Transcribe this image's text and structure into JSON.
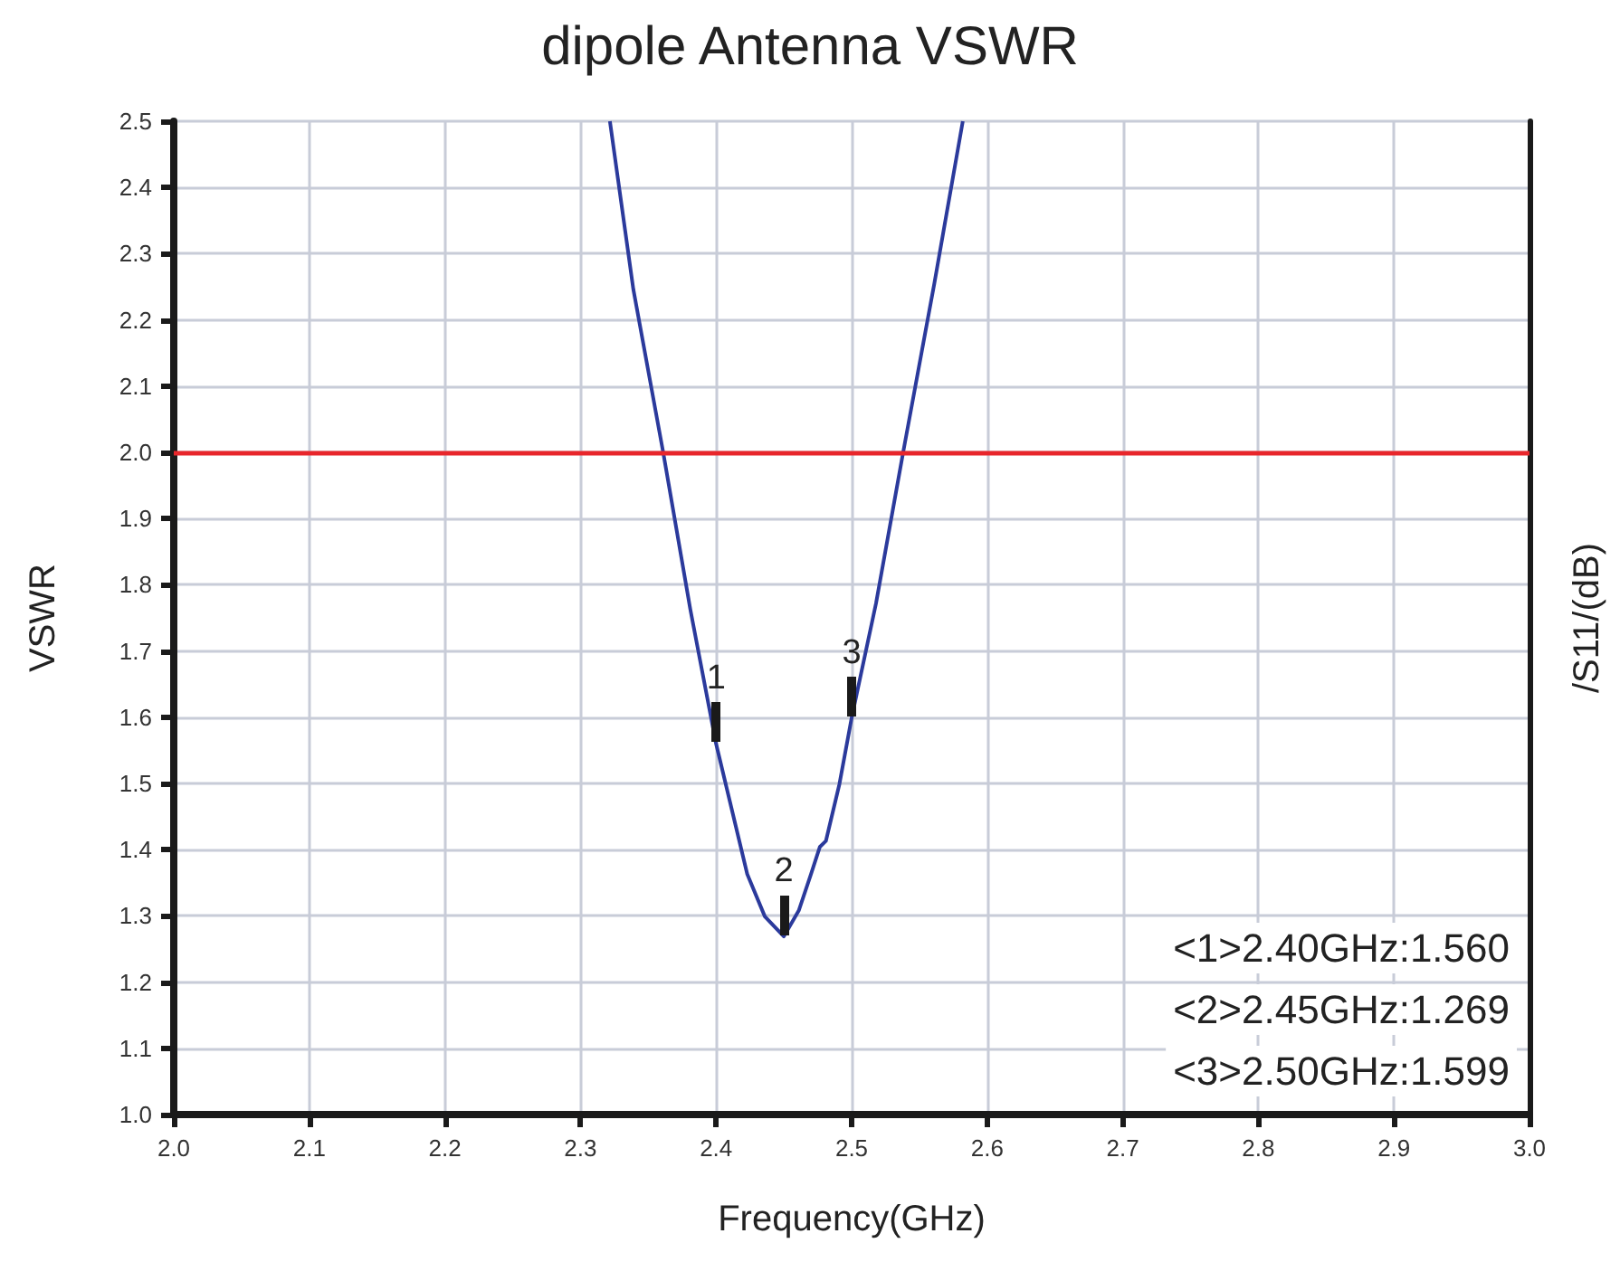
{
  "chart_data": {
    "type": "line",
    "title": "dipole Antenna VSWR",
    "xlabel": "Frequency(GHz)",
    "ylabel": "VSWR",
    "y2label": "/S11/(dB)",
    "x": [
      2.3217,
      2.339,
      2.361,
      2.381,
      2.4,
      2.423,
      2.436,
      2.45,
      2.461,
      2.47,
      2.4765,
      2.481,
      2.491,
      2.5,
      2.518,
      2.538,
      2.561,
      2.582
    ],
    "series": [
      {
        "color": "#2b3a9c",
        "values": [
          2.5,
          2.246,
          2.0,
          1.763,
          1.56,
          1.363,
          1.299,
          1.269,
          1.308,
          1.363,
          1.404,
          1.413,
          1.499,
          1.599,
          1.772,
          2.0,
          2.255,
          2.5
        ]
      }
    ],
    "xlim": [
      2.0,
      3.0
    ],
    "xticks": [
      {
        "value": 2.0,
        "label": "2.0"
      },
      2.1,
      2.2,
      2.3,
      2.4,
      2.5,
      2.6,
      2.7,
      2.8,
      2.9,
      {
        "value": 3.0,
        "label": "3.0"
      }
    ],
    "ylim": [
      1.0,
      2.5
    ],
    "yticks": [
      {
        "value": 1.0,
        "label": "1.0"
      },
      1.1,
      1.2,
      1.3,
      1.4,
      1.5,
      1.6,
      1.7,
      1.8,
      1.9,
      {
        "value": 2.0,
        "label": "2.0"
      },
      2.1,
      2.2,
      2.3,
      2.4,
      2.5
    ],
    "grid": true,
    "marker": "none",
    "line_style": "solid",
    "ref_lines": [
      {
        "axis": "y",
        "value": 2.0,
        "color": "#e8262b"
      }
    ],
    "annotations": [
      {
        "text": "1",
        "x": 2.4,
        "y": 1.56
      },
      {
        "text": "2",
        "x": 2.45,
        "y": 1.269
      },
      {
        "text": "3",
        "x": 2.5,
        "y": 1.599
      },
      "<1>2.40GHz:1.560",
      "<2>2.45GHz:1.269",
      "<3>2.50GHz:1.599"
    ]
  }
}
